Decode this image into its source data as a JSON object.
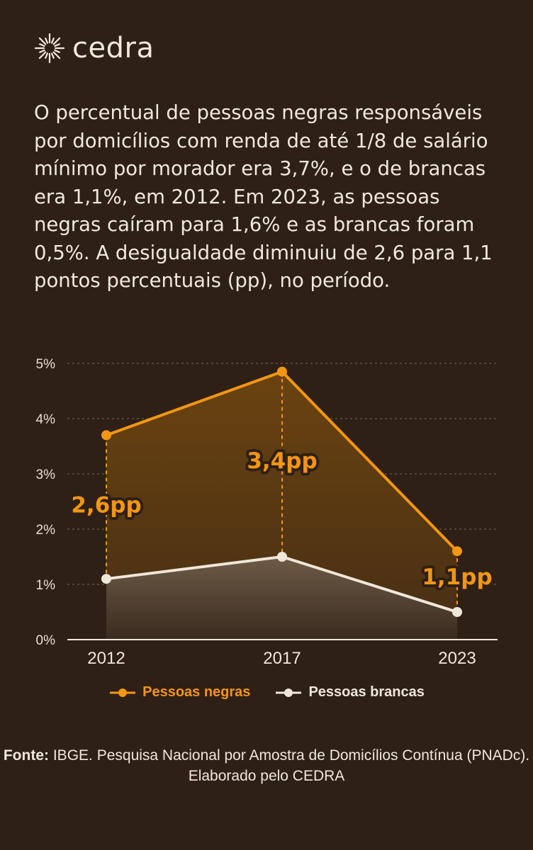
{
  "brand": {
    "name": "cedra"
  },
  "intro_text": "O percentual de pessoas negras responsáveis por domicílios com renda de até 1/8 de salário mínimo por morador era 3,7%, e o de brancas era 1,1%, em 2012. Em 2023, as pessoas negras caíram para 1,6% e as brancas foram 0,5%. A desigualdade diminuiu de 2,6 para 1,1 pontos percentuais (pp), no período.",
  "colors": {
    "background": "#2e2016",
    "black_series": "#f39612",
    "white_series": "#efe7da",
    "gap_label": "#f39612"
  },
  "chart_data": {
    "type": "area",
    "categories": [
      "2012",
      "2017",
      "2023"
    ],
    "series": [
      {
        "name": "Pessoas negras",
        "values": [
          3.7,
          4.85,
          1.6
        ],
        "color": "#f39612"
      },
      {
        "name": "Pessoas brancas",
        "values": [
          1.1,
          1.5,
          0.5
        ],
        "color": "#efe7da"
      }
    ],
    "gap_labels": [
      "2,6pp",
      "3,4pp",
      "1,1pp"
    ],
    "yticks": [
      "0%",
      "1%",
      "2%",
      "3%",
      "4%",
      "5%"
    ],
    "ylim": [
      0,
      5
    ],
    "grid": true,
    "legend_position": "bottom"
  },
  "source": {
    "label": "Fonte:",
    "text": " IBGE. Pesquisa Nacional por Amostra de Domicílios Contínua (PNADc). Elaborado pelo CEDRA"
  }
}
